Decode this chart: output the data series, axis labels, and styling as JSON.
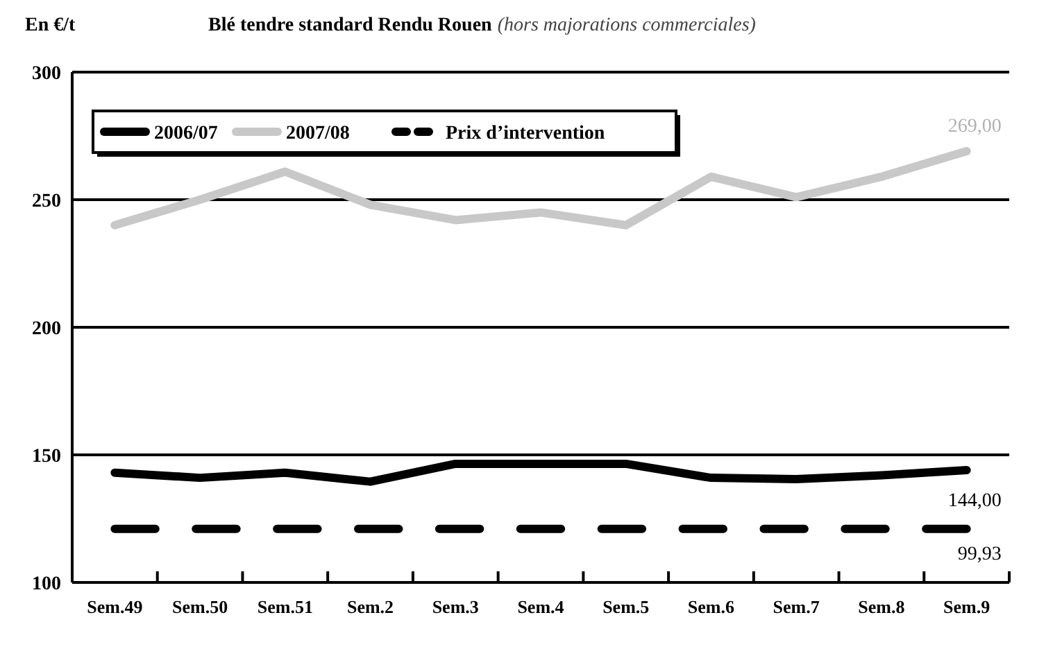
{
  "chart_data": {
    "type": "line",
    "title": "Blé tendre standard Rendu Rouen",
    "subtitle": "(hors majorations commerciales)",
    "ylabel": "En €/t",
    "categories": [
      "Sem.49",
      "Sem.50",
      "Sem.51",
      "Sem.2",
      "Sem.3",
      "Sem.4",
      "Sem.5",
      "Sem.6",
      "Sem.7",
      "Sem.8",
      "Sem.9"
    ],
    "series": [
      {
        "name": "2006/07",
        "color": "#000000",
        "values": [
          143,
          141,
          143,
          139.5,
          146.5,
          146.5,
          146.5,
          141,
          140.5,
          142,
          144
        ],
        "value_labels": [
          null,
          null,
          null,
          null,
          null,
          null,
          null,
          null,
          null,
          null,
          "144,00"
        ]
      },
      {
        "name": "2007/08",
        "color": "#c8c8c8",
        "values": [
          240,
          250,
          261,
          248,
          242,
          245,
          240,
          259,
          251,
          259,
          269
        ],
        "value_labels": [
          null,
          null,
          null,
          null,
          null,
          null,
          null,
          null,
          null,
          null,
          "269,00"
        ]
      },
      {
        "name": "Prix d’intervention",
        "color": "#000000",
        "line_style": "dashed",
        "values": [
          121,
          121,
          121,
          121,
          121,
          121,
          121,
          121,
          121,
          121,
          121
        ]
      }
    ],
    "annotations": [
      "99,93"
    ],
    "ylim": [
      100,
      300
    ],
    "yticks": [
      100,
      150,
      200,
      250,
      300
    ],
    "grid": "y",
    "legend": "top left",
    "line_style": "solid"
  }
}
